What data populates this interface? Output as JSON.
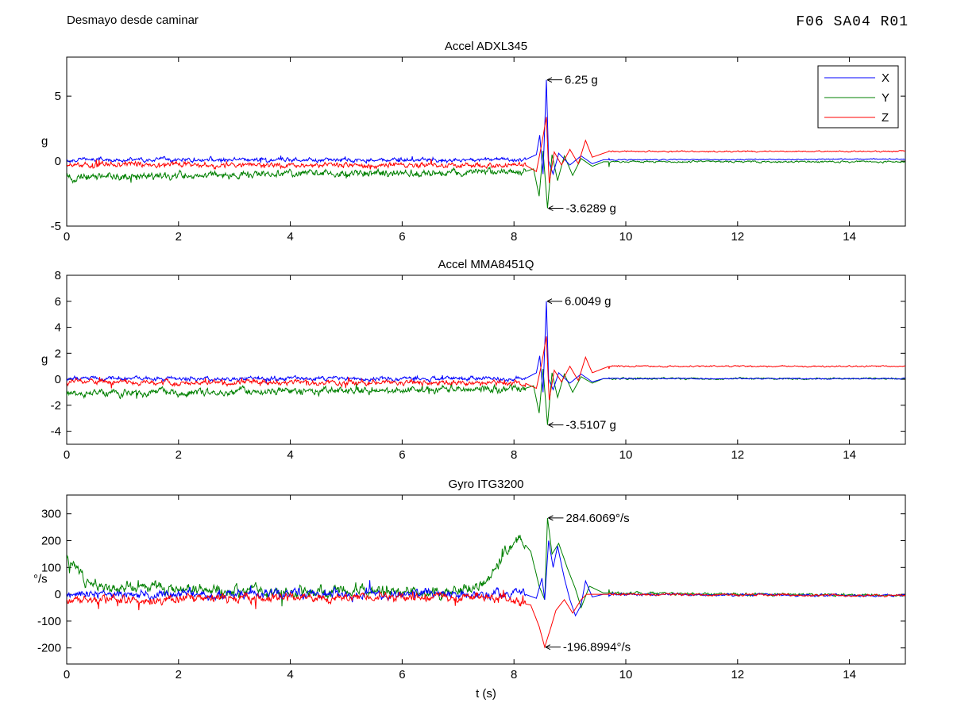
{
  "figure": {
    "title": "Desmayo desde caminar",
    "code": "F06  SA04  R01"
  },
  "chart_data": [
    {
      "type": "line",
      "title": "Accel ADXL345",
      "ylabel": "g",
      "xlabel": "",
      "xlim": [
        0,
        15
      ],
      "ylim": [
        -5,
        8
      ],
      "xticks": [
        0,
        2,
        4,
        6,
        8,
        10,
        12,
        14
      ],
      "yticks": [
        -5,
        0,
        5
      ],
      "legend": {
        "position": "top-right",
        "entries": [
          "X",
          "Y",
          "Z"
        ]
      },
      "colors": {
        "X": "#0000ff",
        "Y": "#008000",
        "Z": "#ff0000"
      },
      "series": [
        {
          "name": "X",
          "base": 0.1,
          "noise": 0.12,
          "points": [
            [
              0,
              0.1
            ],
            [
              8.2,
              0.1
            ],
            [
              8.4,
              0.5
            ],
            [
              8.46,
              2.0
            ],
            [
              8.52,
              -1.0
            ],
            [
              8.58,
              6.25
            ],
            [
              8.62,
              0.0
            ],
            [
              8.7,
              -1.0
            ],
            [
              8.8,
              0.6
            ],
            [
              9.0,
              -0.3
            ],
            [
              9.2,
              0.4
            ],
            [
              9.4,
              -0.2
            ],
            [
              9.6,
              0.1
            ],
            [
              15,
              0.15
            ]
          ]
        },
        {
          "name": "Y",
          "base": -1.0,
          "noise": 0.2,
          "points": [
            [
              0,
              -1.2
            ],
            [
              8.2,
              -0.8
            ],
            [
              8.35,
              -0.6
            ],
            [
              8.45,
              -2.7
            ],
            [
              8.52,
              0.8
            ],
            [
              8.6,
              -3.6289
            ],
            [
              8.68,
              0.5
            ],
            [
              8.78,
              -1.5
            ],
            [
              8.9,
              0.4
            ],
            [
              9.05,
              -1.1
            ],
            [
              9.2,
              0.2
            ],
            [
              9.4,
              -0.4
            ],
            [
              9.6,
              -0.05
            ],
            [
              15,
              -0.05
            ]
          ]
        },
        {
          "name": "Z",
          "base": -0.3,
          "noise": 0.15,
          "points": [
            [
              0,
              -0.3
            ],
            [
              8.2,
              -0.3
            ],
            [
              8.4,
              -0.8
            ],
            [
              8.5,
              1.4
            ],
            [
              8.58,
              3.4
            ],
            [
              8.63,
              -1.7
            ],
            [
              8.72,
              0.7
            ],
            [
              8.85,
              -0.3
            ],
            [
              9.0,
              0.9
            ],
            [
              9.15,
              -0.2
            ],
            [
              9.28,
              1.6
            ],
            [
              9.4,
              0.3
            ],
            [
              9.7,
              0.75
            ],
            [
              15,
              0.75
            ]
          ]
        }
      ],
      "annotations": [
        {
          "text": "6.25 g",
          "x": 8.58,
          "y": 6.25
        },
        {
          "text": "-3.6289 g",
          "x": 8.6,
          "y": -3.6289
        }
      ]
    },
    {
      "type": "line",
      "title": "Accel MMA8451Q",
      "ylabel": "g",
      "xlabel": "",
      "xlim": [
        0,
        15
      ],
      "ylim": [
        -5,
        8
      ],
      "xticks": [
        0,
        2,
        4,
        6,
        8,
        10,
        12,
        14
      ],
      "yticks": [
        -4,
        -2,
        0,
        2,
        4,
        6,
        8
      ],
      "colors": {
        "X": "#0000ff",
        "Y": "#008000",
        "Z": "#ff0000"
      },
      "series": [
        {
          "name": "X",
          "base": 0.0,
          "noise": 0.12,
          "points": [
            [
              0,
              0.05
            ],
            [
              8.2,
              0.05
            ],
            [
              8.4,
              0.5
            ],
            [
              8.46,
              1.8
            ],
            [
              8.52,
              -1.0
            ],
            [
              8.58,
              6.0049
            ],
            [
              8.62,
              0.0
            ],
            [
              8.7,
              -0.8
            ],
            [
              8.8,
              0.5
            ],
            [
              9.0,
              -0.3
            ],
            [
              9.2,
              0.4
            ],
            [
              9.4,
              -0.2
            ],
            [
              9.6,
              0.05
            ],
            [
              15,
              0.05
            ]
          ]
        },
        {
          "name": "Y",
          "base": -0.9,
          "noise": 0.2,
          "points": [
            [
              0,
              -1.1
            ],
            [
              8.2,
              -0.7
            ],
            [
              8.35,
              -0.5
            ],
            [
              8.45,
              -2.6
            ],
            [
              8.52,
              0.8
            ],
            [
              8.6,
              -3.5107
            ],
            [
              8.68,
              0.5
            ],
            [
              8.78,
              -1.4
            ],
            [
              8.9,
              0.4
            ],
            [
              9.05,
              -1.0
            ],
            [
              9.2,
              0.2
            ],
            [
              9.4,
              -0.3
            ],
            [
              9.6,
              0.05
            ],
            [
              15,
              0.05
            ]
          ]
        },
        {
          "name": "Z",
          "base": -0.2,
          "noise": 0.15,
          "points": [
            [
              0,
              -0.2
            ],
            [
              8.2,
              -0.3
            ],
            [
              8.4,
              -0.7
            ],
            [
              8.5,
              1.3
            ],
            [
              8.58,
              3.3
            ],
            [
              8.63,
              -1.6
            ],
            [
              8.72,
              0.7
            ],
            [
              8.85,
              -0.2
            ],
            [
              9.0,
              1.0
            ],
            [
              9.15,
              -0.1
            ],
            [
              9.28,
              1.7
            ],
            [
              9.4,
              0.5
            ],
            [
              9.7,
              1.0
            ],
            [
              15,
              1.0
            ]
          ]
        }
      ],
      "annotations": [
        {
          "text": "6.0049 g",
          "x": 8.58,
          "y": 6.0049
        },
        {
          "text": "-3.5107 g",
          "x": 8.6,
          "y": -3.5107
        }
      ]
    },
    {
      "type": "line",
      "title": "Gyro ITG3200",
      "ylabel": "°/s",
      "xlabel": "t (s)",
      "xlim": [
        0,
        15
      ],
      "ylim": [
        -260,
        370
      ],
      "xticks": [
        0,
        2,
        4,
        6,
        8,
        10,
        12,
        14
      ],
      "yticks": [
        -200,
        -100,
        0,
        100,
        200,
        300
      ],
      "colors": {
        "X": "#0000ff",
        "Y": "#008000",
        "Z": "#ff0000"
      },
      "series": [
        {
          "name": "X",
          "base": 0,
          "noise": 12,
          "points": [
            [
              0,
              0
            ],
            [
              8.2,
              0
            ],
            [
              8.4,
              -15
            ],
            [
              8.5,
              60
            ],
            [
              8.55,
              -20
            ],
            [
              8.62,
              200
            ],
            [
              8.7,
              100
            ],
            [
              8.78,
              180
            ],
            [
              8.9,
              60
            ],
            [
              9.0,
              -20
            ],
            [
              9.1,
              -80
            ],
            [
              9.2,
              -40
            ],
            [
              9.28,
              50
            ],
            [
              9.4,
              -10
            ],
            [
              9.6,
              0
            ],
            [
              15,
              -5
            ]
          ]
        },
        {
          "name": "Y",
          "base": 8,
          "noise": 15,
          "points": [
            [
              0,
              140
            ],
            [
              0.3,
              50
            ],
            [
              0.8,
              20
            ],
            [
              1.5,
              30
            ],
            [
              3.0,
              10
            ],
            [
              5.0,
              10
            ],
            [
              7.0,
              10
            ],
            [
              7.5,
              40
            ],
            [
              7.8,
              140
            ],
            [
              8.1,
              210
            ],
            [
              8.3,
              160
            ],
            [
              8.45,
              30
            ],
            [
              8.55,
              -20
            ],
            [
              8.6,
              284.6069
            ],
            [
              8.68,
              150
            ],
            [
              8.8,
              190
            ],
            [
              8.95,
              100
            ],
            [
              9.1,
              20
            ],
            [
              9.2,
              -50
            ],
            [
              9.35,
              30
            ],
            [
              9.6,
              5
            ],
            [
              15,
              -5
            ]
          ]
        },
        {
          "name": "Z",
          "base": 0,
          "noise": 12,
          "points": [
            [
              0,
              -20
            ],
            [
              7.6,
              -10
            ],
            [
              8.3,
              -40
            ],
            [
              8.45,
              -120
            ],
            [
              8.55,
              -196.8994
            ],
            [
              8.65,
              -130
            ],
            [
              8.75,
              -60
            ],
            [
              8.9,
              -20
            ],
            [
              9.05,
              -70
            ],
            [
              9.2,
              -20
            ],
            [
              9.3,
              0
            ],
            [
              9.6,
              0
            ],
            [
              15,
              -5
            ]
          ]
        }
      ],
      "annotations": [
        {
          "text": "284.6069°/s",
          "x": 8.6,
          "y": 284.6069
        },
        {
          "text": "-196.8994°/s",
          "x": 8.55,
          "y": -196.8994
        }
      ]
    }
  ]
}
